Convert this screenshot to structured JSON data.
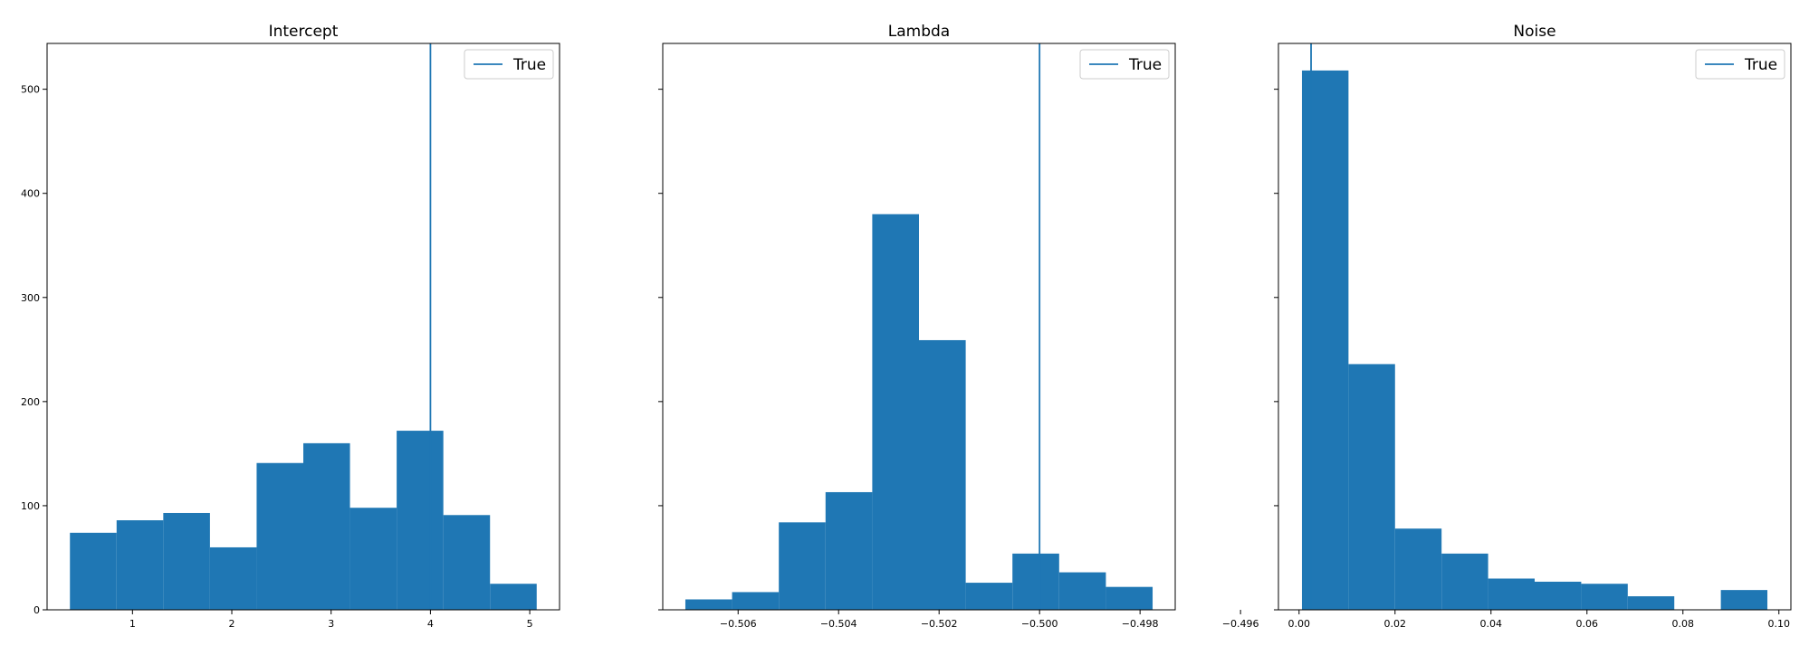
{
  "chart_data": [
    {
      "type": "bar",
      "title": "Intercept",
      "xlabel": "",
      "ylabel": "",
      "bin_edges": [
        0.37,
        0.84,
        1.31,
        1.78,
        2.25,
        2.72,
        3.19,
        3.66,
        4.13,
        4.6,
        5.07
      ],
      "values": [
        74,
        86,
        93,
        60,
        141,
        160,
        98,
        172,
        91,
        25
      ],
      "xlim": [
        0.14,
        5.3
      ],
      "ylim": [
        0,
        544
      ],
      "xticks": [
        1,
        2,
        3,
        4,
        5
      ],
      "xtick_labels": [
        "1",
        "2",
        "3",
        "4",
        "5"
      ],
      "yticks": [
        0,
        100,
        200,
        300,
        400,
        500
      ],
      "ytick_labels": [
        "0",
        "100",
        "200",
        "300",
        "400",
        "500"
      ],
      "vline": 4.0,
      "legend": {
        "label": "True",
        "loc": "upper right"
      },
      "color": "#1f77b4",
      "grid": false
    },
    {
      "type": "bar",
      "title": "Lambda",
      "xlabel": "",
      "ylabel": "",
      "bin_edges": [
        -0.50705,
        -0.50612,
        -0.50519,
        -0.50426,
        -0.50333,
        -0.5024,
        -0.50147,
        -0.50054,
        -0.49961,
        -0.49868,
        -0.49775
      ],
      "values": [
        10,
        17,
        84,
        113,
        380,
        259,
        26,
        54,
        36,
        22
      ],
      "xlim": [
        -0.5075,
        -0.4973
      ],
      "ylim": [
        0,
        544
      ],
      "xticks": [
        -0.506,
        -0.504,
        -0.502,
        -0.5,
        -0.498,
        -0.496
      ],
      "xtick_labels": [
        "−0.506",
        "−0.504",
        "−0.502",
        "−0.500",
        "−0.498",
        "−0.496"
      ],
      "yticks": [
        0,
        100,
        200,
        300,
        400,
        500
      ],
      "ytick_labels": [
        "",
        "",
        "",
        "",
        "",
        ""
      ],
      "vline": -0.5,
      "legend": {
        "label": "True",
        "loc": "upper right"
      },
      "color": "#1f77b4",
      "grid": false
    },
    {
      "type": "bar",
      "title": "Noise",
      "xlabel": "",
      "ylabel": "",
      "bin_edges": [
        0.0006,
        0.0103,
        0.02,
        0.0297,
        0.0394,
        0.0491,
        0.0588,
        0.0685,
        0.0782,
        0.0879,
        0.0976
      ],
      "values": [
        518,
        236,
        78,
        54,
        30,
        27,
        25,
        13,
        0,
        19
      ],
      "xlim": [
        -0.0043,
        0.1025
      ],
      "ylim": [
        0,
        544
      ],
      "xticks": [
        0.0,
        0.02,
        0.04,
        0.06,
        0.08,
        0.1
      ],
      "xtick_labels": [
        "0.00",
        "0.02",
        "0.04",
        "0.06",
        "0.08",
        "0.10"
      ],
      "yticks": [
        0,
        100,
        200,
        300,
        400,
        500
      ],
      "ytick_labels": [
        "",
        "",
        "",
        "",
        "",
        ""
      ],
      "vline": 0.0025,
      "legend": {
        "label": "True",
        "loc": "upper right"
      },
      "color": "#1f77b4",
      "grid": false
    }
  ]
}
